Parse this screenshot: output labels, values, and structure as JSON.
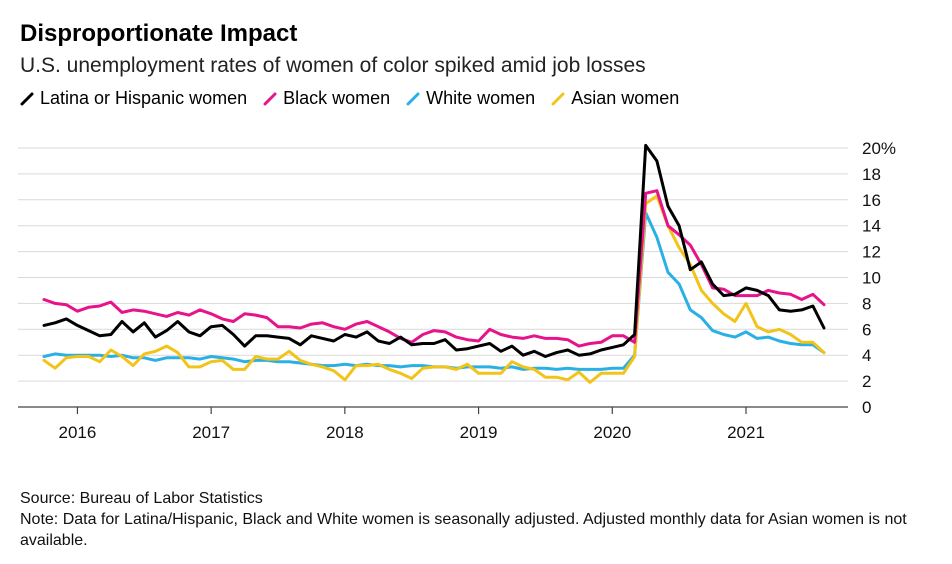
{
  "title": "Disproportionate Impact",
  "subtitle": "U.S. unemployment rates of women of color spiked amid job losses",
  "source": "Source: Bureau of Labor Statistics",
  "note": "Note: Data for Latina/Hispanic, Black and White women is seasonally adjusted. Adjusted monthly data for Asian women is not available.",
  "chart_data": {
    "type": "line",
    "title": "Disproportionate Impact",
    "subtitle": "U.S. unemployment rates of women of color spiked amid job losses",
    "xlabel": "",
    "ylabel": "",
    "x": [
      "2015-10",
      "2015-11",
      "2015-12",
      "2016-01",
      "2016-02",
      "2016-03",
      "2016-04",
      "2016-05",
      "2016-06",
      "2016-07",
      "2016-08",
      "2016-09",
      "2016-10",
      "2016-11",
      "2016-12",
      "2017-01",
      "2017-02",
      "2017-03",
      "2017-04",
      "2017-05",
      "2017-06",
      "2017-07",
      "2017-08",
      "2017-09",
      "2017-10",
      "2017-11",
      "2017-12",
      "2018-01",
      "2018-02",
      "2018-03",
      "2018-04",
      "2018-05",
      "2018-06",
      "2018-07",
      "2018-08",
      "2018-09",
      "2018-10",
      "2018-11",
      "2018-12",
      "2019-01",
      "2019-02",
      "2019-03",
      "2019-04",
      "2019-05",
      "2019-06",
      "2019-07",
      "2019-08",
      "2019-09",
      "2019-10",
      "2019-11",
      "2019-12",
      "2020-01",
      "2020-02",
      "2020-03",
      "2020-04",
      "2020-05",
      "2020-06",
      "2020-07",
      "2020-08",
      "2020-09",
      "2020-10",
      "2020-11",
      "2020-12",
      "2021-01",
      "2021-02",
      "2021-03",
      "2021-04",
      "2021-05",
      "2021-06",
      "2021-07",
      "2021-08"
    ],
    "x_tick_labels": [
      "2016",
      "2017",
      "2018",
      "2019",
      "2020",
      "2021"
    ],
    "y_ticks": [
      0,
      2,
      4,
      6,
      8,
      10,
      12,
      14,
      16,
      18,
      20
    ],
    "y_tick_labels": [
      "0",
      "2",
      "4",
      "6",
      "8",
      "10",
      "12",
      "14",
      "16",
      "18",
      "20%"
    ],
    "ylim": [
      0,
      20
    ],
    "grid": true,
    "y_axis_position": "right",
    "legend_position": "top",
    "series": [
      {
        "name": "Latina or Hispanic women",
        "color": "#000000",
        "values": [
          6.3,
          6.5,
          6.8,
          6.3,
          5.9,
          5.5,
          5.6,
          6.6,
          5.8,
          6.5,
          5.4,
          5.9,
          6.6,
          5.8,
          5.5,
          6.2,
          6.3,
          5.6,
          4.7,
          5.5,
          5.5,
          5.4,
          5.3,
          4.8,
          5.5,
          5.3,
          5.1,
          5.6,
          5.4,
          5.8,
          5.1,
          4.9,
          5.4,
          4.8,
          4.9,
          4.9,
          5.2,
          4.4,
          4.5,
          4.7,
          4.9,
          4.3,
          4.7,
          4.0,
          4.3,
          3.9,
          4.2,
          4.4,
          4.0,
          4.1,
          4.4,
          4.6,
          4.8,
          5.6,
          20.2,
          19.0,
          15.5,
          14.0,
          10.6,
          11.2,
          9.5,
          8.6,
          8.7,
          9.2,
          9.0,
          8.6,
          7.5,
          7.4,
          7.5,
          7.8,
          6.1
        ]
      },
      {
        "name": "Black women",
        "color": "#e6138a",
        "values": [
          8.3,
          8.0,
          7.9,
          7.4,
          7.7,
          7.8,
          8.1,
          7.3,
          7.5,
          7.4,
          7.2,
          7.0,
          7.3,
          7.1,
          7.5,
          7.2,
          6.8,
          6.6,
          7.2,
          7.1,
          6.9,
          6.2,
          6.2,
          6.1,
          6.4,
          6.5,
          6.2,
          6.0,
          6.4,
          6.6,
          6.2,
          5.8,
          5.3,
          5.0,
          5.6,
          5.9,
          5.8,
          5.4,
          5.2,
          5.1,
          6.0,
          5.6,
          5.4,
          5.3,
          5.5,
          5.3,
          5.3,
          5.2,
          4.7,
          4.9,
          5.0,
          5.5,
          5.5,
          5.0,
          16.5,
          16.7,
          14.0,
          13.3,
          12.5,
          11.0,
          9.2,
          9.1,
          8.6,
          8.6,
          8.6,
          9.0,
          8.8,
          8.7,
          8.3,
          8.7,
          7.9
        ]
      },
      {
        "name": "White women",
        "color": "#2bb0e6",
        "values": [
          3.9,
          4.1,
          4.0,
          4.0,
          4.0,
          4.0,
          3.9,
          4.0,
          3.8,
          3.8,
          3.6,
          3.8,
          3.8,
          3.8,
          3.7,
          3.9,
          3.8,
          3.7,
          3.5,
          3.6,
          3.6,
          3.5,
          3.5,
          3.4,
          3.3,
          3.2,
          3.2,
          3.3,
          3.2,
          3.3,
          3.2,
          3.2,
          3.1,
          3.2,
          3.2,
          3.1,
          3.1,
          3.0,
          3.1,
          3.1,
          3.1,
          3.0,
          3.1,
          2.9,
          3.0,
          3.0,
          2.9,
          3.0,
          2.9,
          2.9,
          2.9,
          3.0,
          3.0,
          4.0,
          15.0,
          13.1,
          10.4,
          9.5,
          7.5,
          6.9,
          5.9,
          5.6,
          5.4,
          5.8,
          5.3,
          5.4,
          5.1,
          4.9,
          4.8,
          4.8,
          4.2
        ]
      },
      {
        "name": "Asian women",
        "color": "#f2c318",
        "values": [
          3.6,
          3.0,
          3.8,
          3.9,
          3.9,
          3.5,
          4.4,
          3.9,
          3.2,
          4.1,
          4.3,
          4.7,
          4.2,
          3.1,
          3.1,
          3.5,
          3.6,
          2.9,
          2.9,
          3.9,
          3.7,
          3.7,
          4.3,
          3.6,
          3.3,
          3.1,
          2.8,
          2.1,
          3.2,
          3.2,
          3.3,
          2.9,
          2.6,
          2.2,
          3.0,
          3.1,
          3.1,
          2.9,
          3.3,
          2.6,
          2.6,
          2.6,
          3.5,
          3.1,
          2.9,
          2.3,
          2.3,
          2.1,
          2.7,
          1.9,
          2.6,
          2.6,
          2.6,
          3.9,
          15.7,
          16.3,
          14.0,
          12.3,
          11.0,
          9.0,
          8.0,
          7.2,
          6.6,
          8.0,
          6.2,
          5.8,
          6.0,
          5.6,
          5.0,
          5.0,
          4.2
        ]
      }
    ]
  }
}
